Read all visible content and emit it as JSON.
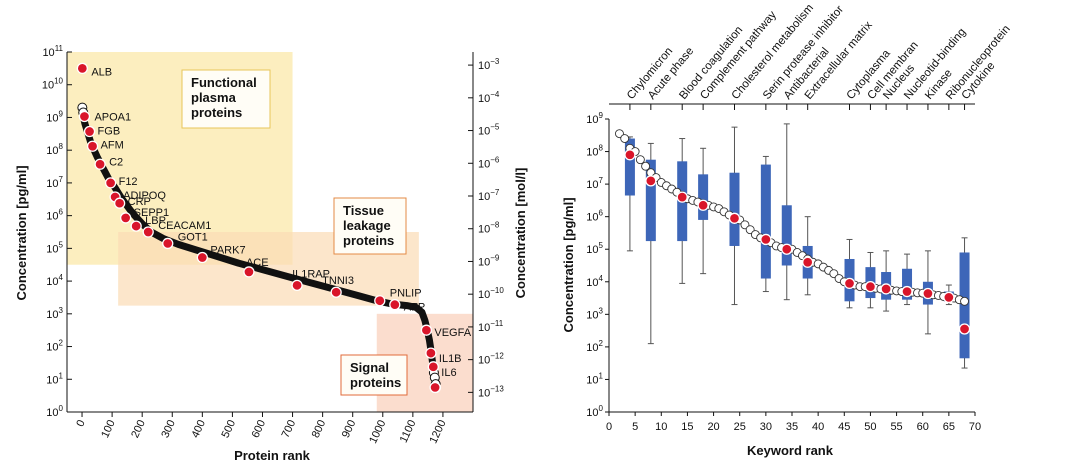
{
  "chart_data": [
    {
      "type": "scatter",
      "xlabel": "Protein rank",
      "ylabel": "Concentration [pg/ml]",
      "ylabel_right": "Concentration [mol/l]",
      "xlim": [
        -50,
        1300
      ],
      "ylim_log10": [
        0,
        11
      ],
      "x_ticks": [
        "0",
        "100",
        "200",
        "300",
        "400",
        "500",
        "600",
        "700",
        "800",
        "900",
        "1000",
        "1100",
        "1200"
      ],
      "y_ticks": [
        {
          "base": "10",
          "exp": "0"
        },
        {
          "base": "10",
          "exp": "1"
        },
        {
          "base": "10",
          "exp": "2"
        },
        {
          "base": "10",
          "exp": "3"
        },
        {
          "base": "10",
          "exp": "4"
        },
        {
          "base": "10",
          "exp": "5"
        },
        {
          "base": "10",
          "exp": "6"
        },
        {
          "base": "10",
          "exp": "7"
        },
        {
          "base": "10",
          "exp": "8"
        },
        {
          "base": "10",
          "exp": "9"
        },
        {
          "base": "10",
          "exp": "10"
        },
        {
          "base": "10",
          "exp": "11"
        }
      ],
      "y_right_ticks": [
        {
          "base": "10",
          "exp": "−3"
        },
        {
          "base": "10",
          "exp": "−4"
        },
        {
          "base": "10",
          "exp": "−5"
        },
        {
          "base": "10",
          "exp": "−6"
        },
        {
          "base": "10",
          "exp": "−7"
        },
        {
          "base": "10",
          "exp": "−8"
        },
        {
          "base": "10",
          "exp": "−9"
        },
        {
          "base": "10",
          "exp": "−10"
        },
        {
          "base": "10",
          "exp": "−11"
        },
        {
          "base": "10",
          "exp": "−12"
        },
        {
          "base": "10",
          "exp": "−13"
        }
      ],
      "regions": [
        {
          "label_lines": [
            "Functional",
            "plasma",
            "proteins"
          ],
          "x_range": [
            -50,
            700
          ],
          "y_range_log10": [
            4.5,
            11
          ],
          "color": "#fbe7a4"
        },
        {
          "label_lines": [
            "Tissue",
            "leakage",
            "proteins"
          ],
          "x_range": [
            120,
            1120
          ],
          "y_range_log10": [
            3.25,
            5.5
          ],
          "color": "#fbdcb5"
        },
        {
          "label_lines": [
            "Signal",
            "proteins"
          ],
          "x_range": [
            980,
            1300
          ],
          "y_range_log10": [
            0,
            3
          ],
          "color": "#f9cfb9"
        }
      ],
      "curve_points": [
        [
          1,
          9.3
        ],
        [
          5,
          9.0
        ],
        [
          10,
          8.8
        ],
        [
          20,
          8.5
        ],
        [
          30,
          8.2
        ],
        [
          50,
          7.8
        ],
        [
          70,
          7.45
        ],
        [
          90,
          7.1
        ],
        [
          110,
          6.85
        ],
        [
          130,
          6.55
        ],
        [
          150,
          6.3
        ],
        [
          170,
          6.05
        ],
        [
          200,
          5.75
        ],
        [
          230,
          5.5
        ],
        [
          270,
          5.3
        ],
        [
          320,
          5.12
        ],
        [
          380,
          4.95
        ],
        [
          450,
          4.75
        ],
        [
          520,
          4.55
        ],
        [
          600,
          4.35
        ],
        [
          680,
          4.15
        ],
        [
          760,
          3.95
        ],
        [
          840,
          3.75
        ],
        [
          920,
          3.55
        ],
        [
          980,
          3.4
        ],
        [
          1030,
          3.3
        ],
        [
          1080,
          3.25
        ],
        [
          1110,
          3.2
        ],
        [
          1130,
          3.05
        ],
        [
          1140,
          2.8
        ],
        [
          1148,
          2.5
        ],
        [
          1155,
          2.2
        ],
        [
          1160,
          1.9
        ],
        [
          1165,
          1.55
        ],
        [
          1170,
          1.2
        ],
        [
          1175,
          0.9
        ],
        [
          1178,
          0.75
        ]
      ],
      "labeled_proteins": [
        {
          "name": "ALB",
          "rank": 1,
          "log10_conc": 10.5
        },
        {
          "name": "APOA1",
          "rank": 8,
          "log10_conc": 9.03
        },
        {
          "name": "FGB",
          "rank": 25,
          "log10_conc": 8.57
        },
        {
          "name": "AFM",
          "rank": 35,
          "log10_conc": 8.12
        },
        {
          "name": "C2",
          "rank": 60,
          "log10_conc": 7.57
        },
        {
          "name": "F12",
          "rank": 95,
          "log10_conc": 7.0
        },
        {
          "name": "ADIPOQ",
          "rank": 110,
          "log10_conc": 6.57
        },
        {
          "name": "CRP",
          "rank": 125,
          "log10_conc": 6.38
        },
        {
          "name": "SEPP1",
          "rank": 145,
          "log10_conc": 5.93
        },
        {
          "name": "LBP",
          "rank": 180,
          "log10_conc": 5.68
        },
        {
          "name": "CEACAM1",
          "rank": 220,
          "log10_conc": 5.5
        },
        {
          "name": "GOT1",
          "rank": 285,
          "log10_conc": 5.15
        },
        {
          "name": "PARK7",
          "rank": 400,
          "log10_conc": 4.72
        },
        {
          "name": "ACE",
          "rank": 555,
          "log10_conc": 4.28
        },
        {
          "name": "IL1RAP",
          "rank": 715,
          "log10_conc": 3.87
        },
        {
          "name": "TNNI3",
          "rank": 845,
          "log10_conc": 3.66
        },
        {
          "name": "PNLIP",
          "rank": 990,
          "log10_conc": 3.4
        },
        {
          "name": "AFP",
          "rank": 1040,
          "log10_conc": 3.28
        },
        {
          "name": "VEGFA",
          "rank": 1145,
          "log10_conc": 2.5
        },
        {
          "name": "IL1B",
          "rank": 1160,
          "log10_conc": 1.8
        },
        {
          "name": "IL6",
          "rank": 1168,
          "log10_conc": 1.38
        },
        {
          "name": "",
          "rank": 1175,
          "log10_conc": 0.75
        }
      ]
    },
    {
      "type": "box",
      "xlabel": "Keyword rank",
      "ylabel": "Concentration [pg/ml]",
      "xlim": [
        0,
        70
      ],
      "ylim_log10": [
        0,
        9
      ],
      "x_ticks": [
        "0",
        "5",
        "10",
        "15",
        "20",
        "25",
        "30",
        "35",
        "40",
        "45",
        "50",
        "55",
        "60",
        "65",
        "70"
      ],
      "y_ticks": [
        {
          "base": "10",
          "exp": "0"
        },
        {
          "base": "10",
          "exp": "1"
        },
        {
          "base": "10",
          "exp": "2"
        },
        {
          "base": "10",
          "exp": "3"
        },
        {
          "base": "10",
          "exp": "4"
        },
        {
          "base": "10",
          "exp": "5"
        },
        {
          "base": "10",
          "exp": "6"
        },
        {
          "base": "10",
          "exp": "7"
        },
        {
          "base": "10",
          "exp": "8"
        },
        {
          "base": "10",
          "exp": "9"
        }
      ],
      "median_curve": [
        [
          2,
          8.55
        ],
        [
          3,
          8.4
        ],
        [
          4,
          8.1
        ],
        [
          5,
          8.0
        ],
        [
          6,
          7.75
        ],
        [
          7,
          7.55
        ],
        [
          8,
          7.35
        ],
        [
          9,
          7.2
        ],
        [
          10,
          7.05
        ],
        [
          11,
          6.95
        ],
        [
          12,
          6.85
        ],
        [
          13,
          6.75
        ],
        [
          14,
          6.65
        ],
        [
          15,
          6.55
        ],
        [
          16,
          6.5
        ],
        [
          17,
          6.45
        ],
        [
          18,
          6.4
        ],
        [
          19,
          6.35
        ],
        [
          20,
          6.3
        ],
        [
          21,
          6.25
        ],
        [
          22,
          6.15
        ],
        [
          23,
          6.05
        ],
        [
          24,
          5.97
        ],
        [
          25,
          5.9
        ],
        [
          26,
          5.75
        ],
        [
          27,
          5.6
        ],
        [
          28,
          5.45
        ],
        [
          29,
          5.35
        ],
        [
          30,
          5.3
        ],
        [
          31,
          5.2
        ],
        [
          32,
          5.1
        ],
        [
          33,
          5.05
        ],
        [
          34,
          5.02
        ],
        [
          35,
          5.0
        ],
        [
          36,
          4.9
        ],
        [
          37,
          4.8
        ],
        [
          38,
          4.7
        ],
        [
          39,
          4.6
        ],
        [
          40,
          4.55
        ],
        [
          41,
          4.45
        ],
        [
          42,
          4.35
        ],
        [
          43,
          4.25
        ],
        [
          44,
          4.1
        ],
        [
          45,
          4.0
        ],
        [
          46,
          3.95
        ],
        [
          47,
          3.9
        ],
        [
          48,
          3.85
        ],
        [
          49,
          3.85
        ],
        [
          50,
          3.82
        ],
        [
          51,
          3.8
        ],
        [
          52,
          3.78
        ],
        [
          53,
          3.76
        ],
        [
          54,
          3.74
        ],
        [
          55,
          3.72
        ],
        [
          56,
          3.7
        ],
        [
          57,
          3.7
        ],
        [
          58,
          3.68
        ],
        [
          59,
          3.66
        ],
        [
          60,
          3.65
        ],
        [
          61,
          3.64
        ],
        [
          62,
          3.6
        ],
        [
          63,
          3.58
        ],
        [
          64,
          3.55
        ],
        [
          65,
          3.52
        ],
        [
          66,
          3.5
        ],
        [
          67,
          3.45
        ],
        [
          68,
          3.4
        ]
      ],
      "keywords": [
        {
          "name": "Chylomicron",
          "rank": 4,
          "median": 7.9,
          "q1": 6.65,
          "q3": 8.4,
          "whisker_low": 4.95,
          "whisker_high": 8.45
        },
        {
          "name": "Acute phase",
          "rank": 8,
          "median": 7.1,
          "q1": 5.25,
          "q3": 7.75,
          "whisker_low": 2.1,
          "whisker_high": 8.25
        },
        {
          "name": "Blood coagulation",
          "rank": 14,
          "median": 6.6,
          "q1": 5.25,
          "q3": 7.7,
          "whisker_low": 3.95,
          "whisker_high": 8.4
        },
        {
          "name": "Complement pathway",
          "rank": 18,
          "median": 6.35,
          "q1": 5.9,
          "q3": 7.3,
          "whisker_low": 4.25,
          "whisker_high": 8.1
        },
        {
          "name": "Cholesterol metabolism",
          "rank": 24,
          "median": 5.95,
          "q1": 5.1,
          "q3": 7.35,
          "whisker_low": 3.3,
          "whisker_high": 8.75
        },
        {
          "name": "Serin protease inhibitor",
          "rank": 30,
          "median": 5.3,
          "q1": 4.1,
          "q3": 7.6,
          "whisker_low": 3.7,
          "whisker_high": 7.85
        },
        {
          "name": "Antibacterial",
          "rank": 34,
          "median": 5.0,
          "q1": 4.5,
          "q3": 6.35,
          "whisker_low": 3.45,
          "whisker_high": 8.85
        },
        {
          "name": "Extracellular matrix",
          "rank": 38,
          "median": 4.6,
          "q1": 4.1,
          "q3": 5.1,
          "whisker_low": 3.6,
          "whisker_high": 6.0
        },
        {
          "name": "Cytoplasma",
          "rank": 46,
          "median": 3.95,
          "q1": 3.4,
          "q3": 4.7,
          "whisker_low": 3.2,
          "whisker_high": 5.3
        },
        {
          "name": "Cell membran",
          "rank": 50,
          "median": 3.85,
          "q1": 3.5,
          "q3": 4.45,
          "whisker_low": 3.2,
          "whisker_high": 4.9
        },
        {
          "name": "Nucleus",
          "rank": 53,
          "median": 3.78,
          "q1": 3.45,
          "q3": 4.3,
          "whisker_low": 3.1,
          "whisker_high": 4.95
        },
        {
          "name": "Nucleotid-binding",
          "rank": 57,
          "median": 3.7,
          "q1": 3.45,
          "q3": 4.4,
          "whisker_low": 3.3,
          "whisker_high": 4.85
        },
        {
          "name": "Kinase",
          "rank": 61,
          "median": 3.64,
          "q1": 3.3,
          "q3": 4.0,
          "whisker_low": 2.4,
          "whisker_high": 4.95
        },
        {
          "name": "Ribonucleoprotein",
          "rank": 65,
          "median": 3.52,
          "q1": 3.4,
          "q3": 3.7,
          "whisker_low": 3.3,
          "whisker_high": 3.9
        },
        {
          "name": "Cytokine",
          "rank": 68,
          "median": 2.55,
          "q1": 1.65,
          "q3": 4.9,
          "whisker_low": 1.35,
          "whisker_high": 5.35
        }
      ]
    }
  ]
}
